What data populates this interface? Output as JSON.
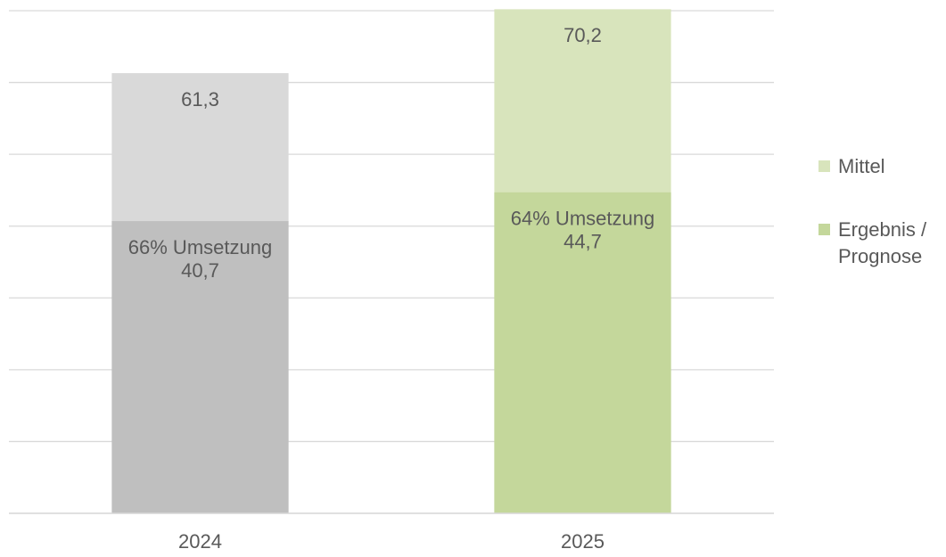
{
  "chart_data": {
    "type": "overlap_bar",
    "categories": [
      "2024",
      "2025"
    ],
    "series": [
      {
        "name": "Mittel",
        "color": "#d8e4bc",
        "colors": [
          "#d9d9d9",
          "#d8e4bc"
        ],
        "values": [
          61.3,
          70.2
        ],
        "value_labels": [
          "61,3",
          "70,2"
        ]
      },
      {
        "name": "Ergebnis / Prognose",
        "color": "#c4d79b",
        "colors": [
          "#bfbfbf",
          "#c4d79b"
        ],
        "values": [
          40.7,
          44.7
        ],
        "value_labels": [
          "40,7",
          "44,7"
        ],
        "annotations": [
          "66% Umsetzung",
          "64% Umsetzung"
        ]
      }
    ],
    "ylim": [
      0,
      70
    ],
    "yticks": [
      0,
      10,
      20,
      30,
      40,
      50,
      60,
      70
    ],
    "grid": true,
    "legend": "right"
  }
}
